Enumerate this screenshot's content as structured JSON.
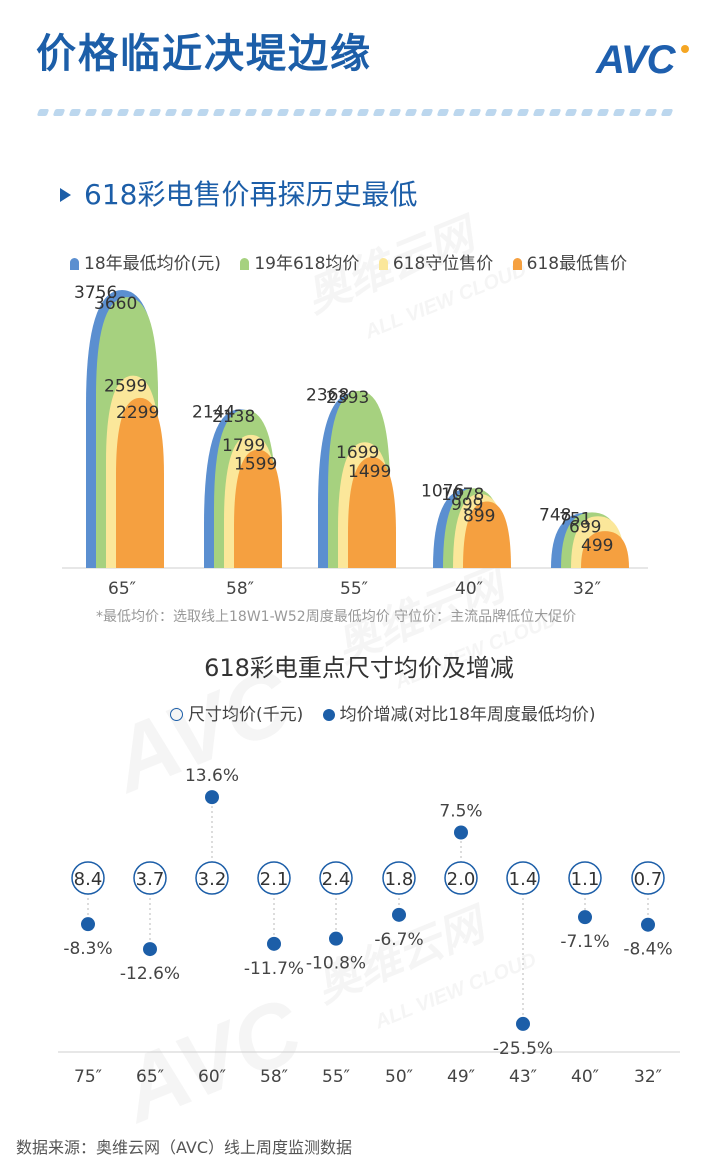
{
  "header": {
    "title": "价格临近决堤边缘",
    "logo": "AVC"
  },
  "watermark": {
    "brand": "AVC",
    "cn": "奥维云网",
    "en": "ALL VIEW CLOUD"
  },
  "section1": {
    "title": "618彩电售价再探历史最低",
    "footnote": "*最低均价：选取线上18W1-W52周度最低均价    守位价：主流品牌低位大促价"
  },
  "colors": {
    "blue": "#5b8fd0",
    "green": "#a6d17f",
    "yellow": "#fbe79a",
    "orange": "#f5a040",
    "navy": "#1c5ea8"
  },
  "chart_data": [
    {
      "type": "bar",
      "title": "618彩电售价再探历史最低",
      "categories": [
        "65″",
        "58″",
        "55″",
        "40″",
        "32″"
      ],
      "series": [
        {
          "name": "18年最低均价(元)",
          "values": [
            3756,
            2144,
            2368,
            1076,
            748
          ]
        },
        {
          "name": "19年618均价",
          "values": [
            3660,
            2138,
            2393,
            1078,
            751
          ]
        },
        {
          "name": "618守位售价",
          "values": [
            2599,
            1799,
            1699,
            999,
            699
          ]
        },
        {
          "name": "618最低售价",
          "values": [
            2299,
            1599,
            1499,
            899,
            499
          ]
        }
      ],
      "legend": "top",
      "grid": false
    },
    {
      "type": "scatter",
      "title": "618彩电重点尺寸均价及增减",
      "categories": [
        "75″",
        "65″",
        "60″",
        "58″",
        "55″",
        "50″",
        "49″",
        "43″",
        "40″",
        "32″"
      ],
      "series": [
        {
          "name": "尺寸均价(千元)",
          "values": [
            8.4,
            3.7,
            3.2,
            2.1,
            2.4,
            1.8,
            2.0,
            1.4,
            1.1,
            0.7
          ]
        },
        {
          "name": "均价增减(对比18年周度最低均价)",
          "values": [
            -8.3,
            -12.6,
            13.6,
            -11.7,
            -10.8,
            -6.7,
            7.5,
            -25.5,
            -7.1,
            -8.4
          ]
        }
      ],
      "change_labels": [
        "-8.3%",
        "-12.6%",
        "13.6%",
        "-11.7%",
        "-10.8%",
        "-6.7%",
        "7.5%",
        "-25.5%",
        "-7.1%",
        "-8.4%"
      ],
      "price_labels": [
        "8.4",
        "3.7",
        "3.2",
        "2.1",
        "2.4",
        "1.8",
        "2.0",
        "1.4",
        "1.1",
        "0.7"
      ],
      "legend": "top",
      "grid": false
    }
  ],
  "source": "数据来源：奥维云网（AVC）线上周度监测数据"
}
